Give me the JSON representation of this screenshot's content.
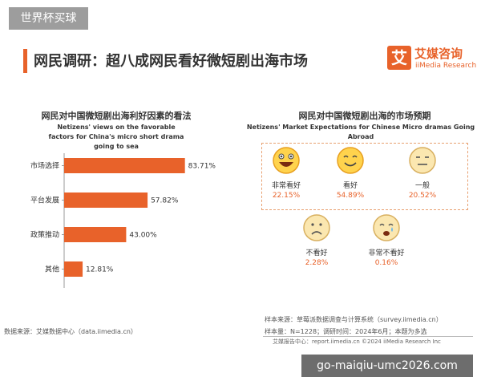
{
  "top_tag": "世界杯买球",
  "title": "网民调研：超八成网民看好微短剧出海市场",
  "logo": {
    "mark": "艾",
    "name_cn": "艾媒咨询",
    "name_en": "iiMedia Research"
  },
  "chart_data": [
    {
      "type": "bar",
      "orientation": "horizontal",
      "title": "网民对中国微短剧出海利好因素的看法",
      "subtitle": "Netizens' views on the favorable factors for China's micro short drama going to sea",
      "categories": [
        "市场选择",
        "平台发展",
        "政策推动",
        "其他"
      ],
      "values": [
        83.71,
        57.82,
        43.0,
        12.81
      ],
      "value_labels": [
        "83.71%",
        "57.82%",
        "43.00%",
        "12.81%"
      ],
      "bar_color": "#e8622a",
      "xlim": [
        0,
        100
      ]
    },
    {
      "type": "pictogram",
      "title": "网民对中国微短剧出海的市场预期",
      "subtitle": "Netizens' Market Expectations for Chinese Micro dramas Going Abroad",
      "items": [
        {
          "label": "非常看好",
          "value": 22.15,
          "display": "22.15%",
          "icon": "big-smile-face-icon"
        },
        {
          "label": "看好",
          "value": 54.89,
          "display": "54.89%",
          "icon": "smile-face-icon"
        },
        {
          "label": "一般",
          "value": 20.52,
          "display": "20.52%",
          "icon": "neutral-face-icon"
        },
        {
          "label": "不看好",
          "value": 2.28,
          "display": "2.28%",
          "icon": "sad-face-icon"
        },
        {
          "label": "非常不看好",
          "value": 0.16,
          "display": "0.16%",
          "icon": "crying-face-icon"
        }
      ],
      "highlight_color": "#e8622a"
    }
  ],
  "footer": {
    "source_left": "数据来源：艾媒数据中心（data.iimedia.cn）",
    "sample_source": "样本来源：草莓派数据调查与计算系统（survey.iimedia.cn）",
    "sample_size": "样本量：N=1228；调研时间：2024年6月；本题为多选",
    "report_center": "艾媒报告中心：report.iimedia.cn    ©2024  iiMedia Research  Inc"
  },
  "watermark": "go-maiqiu-umc2026.com"
}
